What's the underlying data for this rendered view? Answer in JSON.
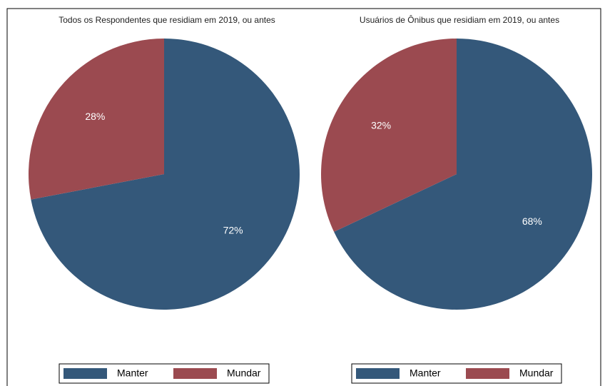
{
  "chart_data": [
    {
      "type": "pie",
      "title": "Todos os Respondentes que residiam em 2019, ou antes",
      "categories": [
        "Manter",
        "Mundar"
      ],
      "values": [
        72,
        28
      ],
      "value_labels": [
        "72%",
        "28%"
      ],
      "colors": [
        "#34587a",
        "#9b4a50"
      ]
    },
    {
      "type": "pie",
      "title": "Usuários de Ônibus que residiam em 2019, ou antes",
      "categories": [
        "Manter",
        "Mundar"
      ],
      "values": [
        68,
        32
      ],
      "value_labels": [
        "68%",
        "32%"
      ],
      "colors": [
        "#34587a",
        "#9b4a50"
      ]
    }
  ]
}
